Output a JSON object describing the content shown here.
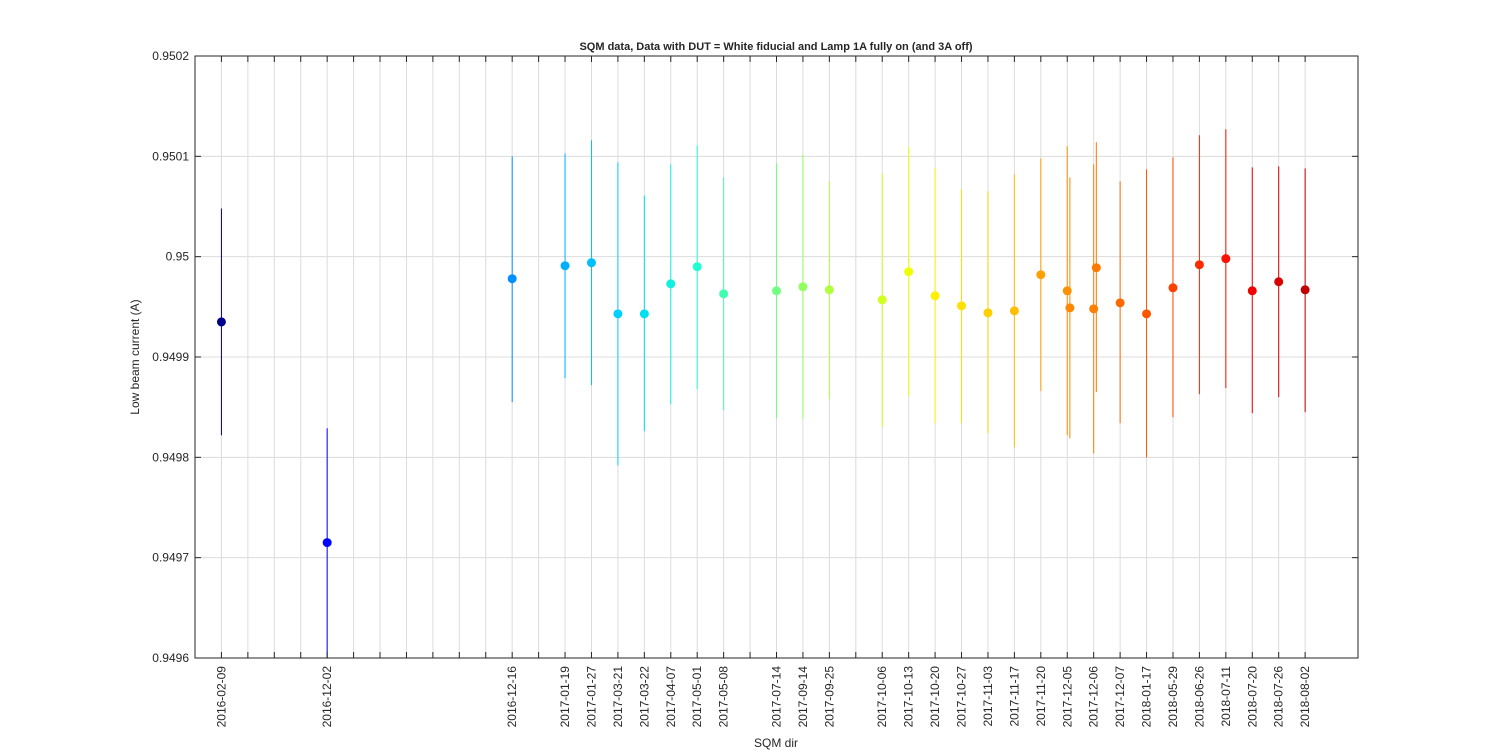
{
  "chart_data": {
    "type": "scatter",
    "title": "SQM data, Data with DUT = White fiducial and Lamp 1A fully on (and 3A off)",
    "xlabel": "SQM dir",
    "ylabel": "Low beam current (A)",
    "ylim": [
      0.9496,
      0.9502
    ],
    "yticks": [
      "0.9496",
      "0.9497",
      "0.9498",
      "0.9499",
      "0.95",
      "0.9501",
      "0.9502"
    ],
    "grid": true,
    "xlim": [
      0,
      44
    ],
    "xticks": [
      {
        "slot": 1,
        "label": "2016-02-09"
      },
      {
        "slot": 2,
        "label": ""
      },
      {
        "slot": 3,
        "label": ""
      },
      {
        "slot": 4,
        "label": ""
      },
      {
        "slot": 5,
        "label": "2016-12-02"
      },
      {
        "slot": 6,
        "label": ""
      },
      {
        "slot": 7,
        "label": ""
      },
      {
        "slot": 8,
        "label": ""
      },
      {
        "slot": 9,
        "label": ""
      },
      {
        "slot": 10,
        "label": ""
      },
      {
        "slot": 11,
        "label": ""
      },
      {
        "slot": 12,
        "label": "2016-12-16"
      },
      {
        "slot": 13,
        "label": ""
      },
      {
        "slot": 14,
        "label": "2017-01-19"
      },
      {
        "slot": 15,
        "label": "2017-01-27"
      },
      {
        "slot": 16,
        "label": "2017-03-21"
      },
      {
        "slot": 17,
        "label": "2017-03-22"
      },
      {
        "slot": 18,
        "label": "2017-04-07"
      },
      {
        "slot": 19,
        "label": "2017-05-01"
      },
      {
        "slot": 20,
        "label": "2017-05-08"
      },
      {
        "slot": 21,
        "label": ""
      },
      {
        "slot": 22,
        "label": "2017-07-14"
      },
      {
        "slot": 23,
        "label": "2017-09-14"
      },
      {
        "slot": 24,
        "label": "2017-09-25"
      },
      {
        "slot": 25,
        "label": ""
      },
      {
        "slot": 26,
        "label": "2017-10-06"
      },
      {
        "slot": 27,
        "label": "2017-10-13"
      },
      {
        "slot": 28,
        "label": "2017-10-20"
      },
      {
        "slot": 29,
        "label": "2017-10-27"
      },
      {
        "slot": 30,
        "label": "2017-11-03"
      },
      {
        "slot": 31,
        "label": "2017-11-17"
      },
      {
        "slot": 32,
        "label": "2017-11-20"
      },
      {
        "slot": 33,
        "label": "2017-12-05"
      },
      {
        "slot": 34,
        "label": "2017-12-06"
      },
      {
        "slot": 35,
        "label": "2017-12-07"
      },
      {
        "slot": 36,
        "label": "2018-01-17"
      },
      {
        "slot": 37,
        "label": "2018-05-29"
      },
      {
        "slot": 38,
        "label": "2018-06-26"
      },
      {
        "slot": 39,
        "label": "2018-07-11"
      },
      {
        "slot": 40,
        "label": "2018-07-20"
      },
      {
        "slot": 41,
        "label": "2018-07-26"
      },
      {
        "slot": 42,
        "label": "2018-08-02"
      }
    ],
    "points": [
      {
        "x": 1,
        "y": 0.949935,
        "low": 0.949822,
        "high": 0.950048,
        "color": "#00008f"
      },
      {
        "x": 5,
        "y": 0.949715,
        "low": 0.9496,
        "high": 0.949829,
        "color": "#0000ff"
      },
      {
        "x": 12,
        "y": 0.949978,
        "low": 0.949855,
        "high": 0.9501,
        "color": "#0090ff"
      },
      {
        "x": 14,
        "y": 0.949991,
        "low": 0.949879,
        "high": 0.950103,
        "color": "#00b0ff"
      },
      {
        "x": 15,
        "y": 0.949994,
        "low": 0.949872,
        "high": 0.950116,
        "color": "#00c0ff"
      },
      {
        "x": 16,
        "y": 0.949943,
        "low": 0.949792,
        "high": 0.950094,
        "color": "#00d0ff"
      },
      {
        "x": 17,
        "y": 0.949943,
        "low": 0.949826,
        "high": 0.950061,
        "color": "#00e0f0"
      },
      {
        "x": 18,
        "y": 0.949973,
        "low": 0.949853,
        "high": 0.950092,
        "color": "#10f0e0"
      },
      {
        "x": 19,
        "y": 0.94999,
        "low": 0.949868,
        "high": 0.950111,
        "color": "#20ffd0"
      },
      {
        "x": 20,
        "y": 0.949963,
        "low": 0.949847,
        "high": 0.950079,
        "color": "#40ffb0"
      },
      {
        "x": 22,
        "y": 0.949966,
        "low": 0.949839,
        "high": 0.950093,
        "color": "#70ff80"
      },
      {
        "x": 23,
        "y": 0.94997,
        "low": 0.949838,
        "high": 0.950102,
        "color": "#90ff60"
      },
      {
        "x": 24,
        "y": 0.949967,
        "low": 0.949858,
        "high": 0.950075,
        "color": "#b0ff40"
      },
      {
        "x": 26,
        "y": 0.949957,
        "low": 0.94983,
        "high": 0.950083,
        "color": "#d0ff20"
      },
      {
        "x": 27,
        "y": 0.949985,
        "low": 0.949861,
        "high": 0.950109,
        "color": "#f0ff00"
      },
      {
        "x": 28,
        "y": 0.949961,
        "low": 0.949834,
        "high": 0.950088,
        "color": "#ffef00"
      },
      {
        "x": 29,
        "y": 0.949951,
        "low": 0.949834,
        "high": 0.950067,
        "color": "#ffdf00"
      },
      {
        "x": 30,
        "y": 0.949944,
        "low": 0.949824,
        "high": 0.950065,
        "color": "#ffcf00"
      },
      {
        "x": 31,
        "y": 0.949946,
        "low": 0.94981,
        "high": 0.950082,
        "color": "#ffbf00"
      },
      {
        "x": 32,
        "y": 0.949982,
        "low": 0.949866,
        "high": 0.950098,
        "color": "#ffa000"
      },
      {
        "x": 33,
        "y": 0.949966,
        "low": 0.949822,
        "high": 0.95011,
        "color": "#ff9000"
      },
      {
        "x": 33.1,
        "y": 0.949949,
        "low": 0.949819,
        "high": 0.950079,
        "color": "#ff8800"
      },
      {
        "x": 34,
        "y": 0.949948,
        "low": 0.949804,
        "high": 0.950092,
        "color": "#ff8000"
      },
      {
        "x": 34.1,
        "y": 0.949989,
        "low": 0.949865,
        "high": 0.950114,
        "color": "#ff7800"
      },
      {
        "x": 35,
        "y": 0.949954,
        "low": 0.949834,
        "high": 0.950075,
        "color": "#ff6a00"
      },
      {
        "x": 36,
        "y": 0.949943,
        "low": 0.9498,
        "high": 0.950087,
        "color": "#ff5400"
      },
      {
        "x": 37,
        "y": 0.949969,
        "low": 0.94984,
        "high": 0.950099,
        "color": "#ff4000"
      },
      {
        "x": 38,
        "y": 0.949992,
        "low": 0.949863,
        "high": 0.950121,
        "color": "#ff2a00"
      },
      {
        "x": 39,
        "y": 0.949998,
        "low": 0.949869,
        "high": 0.950127,
        "color": "#ff1000"
      },
      {
        "x": 40,
        "y": 0.949966,
        "low": 0.949844,
        "high": 0.950089,
        "color": "#f00000"
      },
      {
        "x": 41,
        "y": 0.949975,
        "low": 0.94986,
        "high": 0.95009,
        "color": "#d80000"
      },
      {
        "x": 42,
        "y": 0.949967,
        "low": 0.949845,
        "high": 0.950088,
        "color": "#c00000"
      }
    ]
  }
}
